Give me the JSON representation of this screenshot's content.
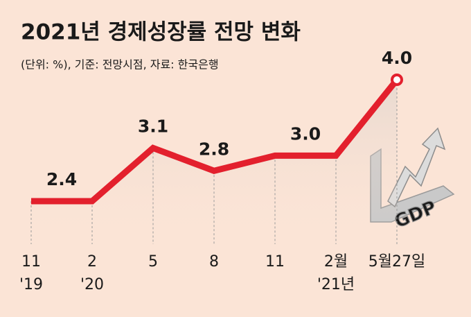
{
  "chart_data": {
    "type": "line",
    "title": "2021년 경제성장률 전망 변화",
    "subtitle": "(단위: %), 기준: 전망시점, 자료: 한국은행",
    "categories": [
      "11",
      "2",
      "5",
      "8",
      "11",
      "2월",
      "5월27일"
    ],
    "category_years": [
      "'19",
      "'20",
      null,
      null,
      null,
      "'21년",
      null
    ],
    "values": [
      2.4,
      2.4,
      3.1,
      2.8,
      3.0,
      3.0,
      4.0
    ],
    "value_labels": [
      "2.4",
      null,
      "3.1",
      "2.8",
      "3.0",
      null,
      "4.0"
    ],
    "color": "#e3202d",
    "annotation": "GDP"
  }
}
